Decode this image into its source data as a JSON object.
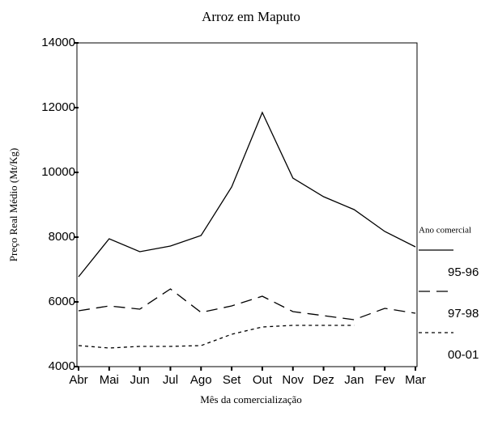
{
  "chart_data": {
    "type": "line",
    "title": "Arroz em Maputo",
    "x_label": "Mês da comercialização",
    "y_label": "Preço Real Médio (Mt/Kg)",
    "legend_title": "Ano comercial",
    "legend_position": "right",
    "categories": [
      "Abr",
      "Mai",
      "Jun",
      "Jul",
      "Ago",
      "Set",
      "Out",
      "Nov",
      "Dez",
      "Jan",
      "Fev",
      "Mar"
    ],
    "series": [
      {
        "name": "95-96",
        "color": "#000000",
        "dash": "solid",
        "values": [
          6775,
          7950,
          7550,
          7725,
          8050,
          9550,
          11850,
          9825,
          9250,
          8850,
          8175,
          7700
        ]
      },
      {
        "name": "97-98",
        "color": "#000000",
        "dash": "dashed",
        "values": [
          5725,
          5875,
          5775,
          6400,
          5675,
          5875,
          6175,
          5700,
          5575,
          5450,
          5800,
          5650
        ]
      },
      {
        "name": "00-01",
        "color": "#000000",
        "dash": "dotted",
        "values": [
          4650,
          4575,
          4625,
          4625,
          4650,
          5000,
          5225,
          5275,
          5275,
          5275,
          null,
          null
        ]
      }
    ],
    "ylim": [
      4000,
      14000
    ],
    "yticks": [
      4000,
      6000,
      8000,
      10000,
      12000,
      14000
    ],
    "grid": false
  }
}
